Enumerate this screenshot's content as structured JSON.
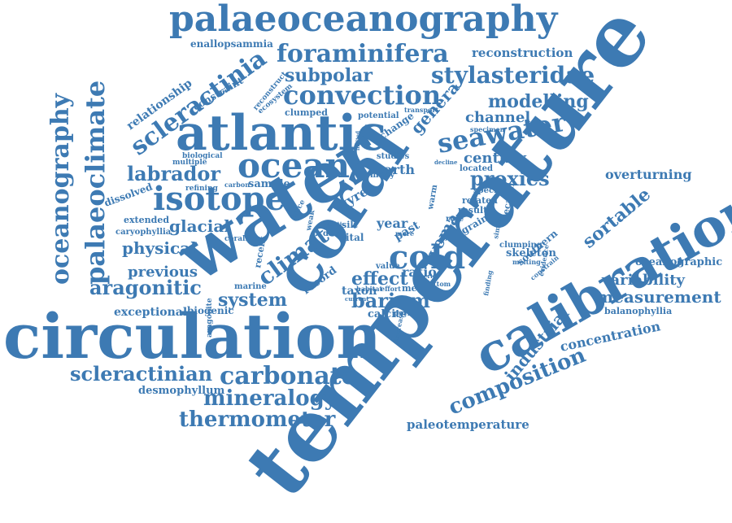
{
  "color": "#3d7ab3",
  "words": [
    "palaeoceanography",
    "foraminifera",
    "enallopsammia",
    "reconstruction",
    "stylasteridae",
    "subpolar",
    "convection",
    "scleractinia",
    "constraint",
    "relationship",
    "modelling",
    "atlantic",
    "genera",
    "channel",
    "seawater",
    "clumped",
    "potential",
    "transport",
    "reconstruct",
    "ecosystem",
    "change",
    "specimen",
    "century",
    "ocean",
    "labrador",
    "biological",
    "multiple",
    "refining",
    "carbon",
    "sample",
    "isotope",
    "dissolved",
    "water",
    "coral",
    "earth",
    "studies",
    "many",
    "located",
    "proxies",
    "overturning",
    "specific",
    "related",
    "result",
    "decadal",
    "extended",
    "caryophyllia",
    "glacial",
    "trace",
    "weak",
    "gyre",
    "silt",
    "year",
    "role",
    "grain",
    "sortable",
    "cold",
    "vema",
    "data",
    "vital",
    "past",
    "more",
    "arctic",
    "coralline",
    "physical",
    "recent",
    "climate",
    "ratio",
    "effect",
    "value",
    "clumping",
    "skeleton",
    "southern",
    "melting",
    "oceanographic",
    "previous",
    "aragonitic",
    "marine",
    "record",
    "taxon",
    "barium",
    "habitat",
    "effort",
    "metal",
    "bottom",
    "current",
    "system",
    "calcite",
    "period",
    "variability",
    "measurement",
    "balanophyllia",
    "exceptional",
    "biogenic",
    "aragonite",
    "circulation",
    "temperature",
    "calibration",
    "industrial",
    "concentration",
    "composition",
    "scleractinian",
    "carbonate",
    "desmophyllum",
    "mineralogy",
    "thermometer",
    "paleotemperature",
    "oceanography",
    "palaeoclimate",
    "limited",
    "decline",
    "interior",
    "increase",
    "finding",
    "evidence",
    "similar",
    "warm",
    "constrain"
  ]
}
